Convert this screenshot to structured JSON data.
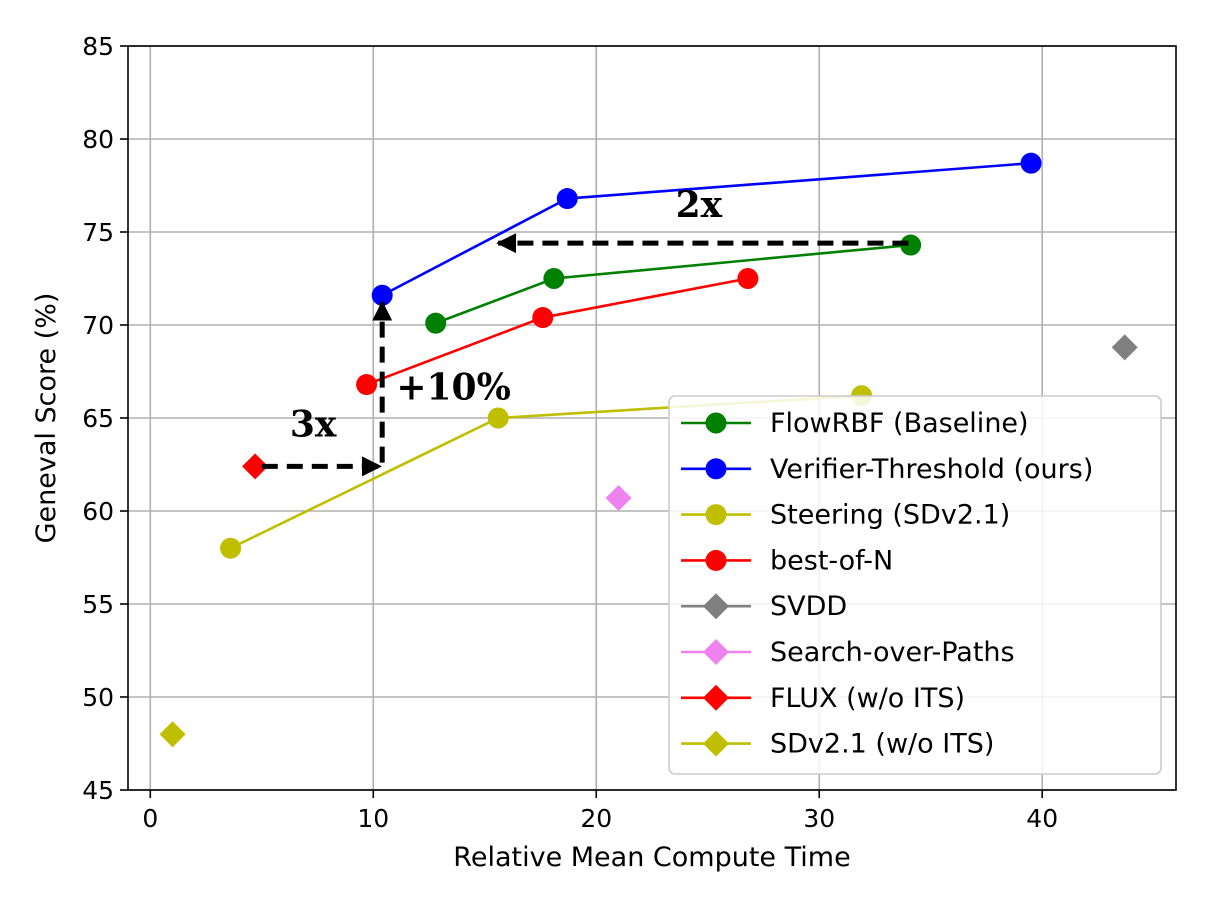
{
  "chart_data": {
    "type": "line",
    "title": "",
    "xlabel": "Relative Mean Compute Time",
    "ylabel": "Geneval Score (%)",
    "xlim": [
      -1,
      46
    ],
    "ylim": [
      45,
      85
    ],
    "xticks": [
      0,
      10,
      20,
      30,
      40
    ],
    "yticks": [
      45,
      50,
      55,
      60,
      65,
      70,
      75,
      80,
      85
    ],
    "grid": true,
    "legend_position": "lower-right",
    "series": [
      {
        "name": "FlowRBF (Baseline)",
        "color": "#008000",
        "marker": "circle",
        "line": true,
        "points": [
          {
            "x": 12.8,
            "y": 70.1
          },
          {
            "x": 18.1,
            "y": 72.5
          },
          {
            "x": 34.1,
            "y": 74.3
          }
        ]
      },
      {
        "name": "Verifier-Threshold (ours)",
        "color": "#0000ff",
        "marker": "circle",
        "line": true,
        "points": [
          {
            "x": 10.4,
            "y": 71.6
          },
          {
            "x": 18.7,
            "y": 76.8
          },
          {
            "x": 39.5,
            "y": 78.7
          }
        ]
      },
      {
        "name": "Steering (SDv2.1)",
        "color": "#bfbf00",
        "marker": "circle",
        "line": true,
        "points": [
          {
            "x": 3.6,
            "y": 58.0
          },
          {
            "x": 15.6,
            "y": 65.0
          },
          {
            "x": 31.9,
            "y": 66.2
          }
        ]
      },
      {
        "name": "best-of-N",
        "color": "#ff0000",
        "marker": "circle",
        "line": true,
        "points": [
          {
            "x": 9.7,
            "y": 66.8
          },
          {
            "x": 17.6,
            "y": 70.4
          },
          {
            "x": 26.8,
            "y": 72.5
          }
        ]
      },
      {
        "name": "SVDD",
        "color": "#808080",
        "marker": "diamond",
        "line": false,
        "points": [
          {
            "x": 43.7,
            "y": 68.8
          }
        ]
      },
      {
        "name": "Search-over-Paths",
        "color": "#ee82ee",
        "marker": "diamond",
        "line": false,
        "points": [
          {
            "x": 21.0,
            "y": 60.7
          }
        ]
      },
      {
        "name": "FLUX (w/o ITS)",
        "color": "#ff0000",
        "marker": "diamond",
        "line": false,
        "points": [
          {
            "x": 4.7,
            "y": 62.4
          }
        ]
      },
      {
        "name": "SDv2.1 (w/o ITS)",
        "color": "#bfbf00",
        "marker": "diamond",
        "line": false,
        "points": [
          {
            "x": 1.0,
            "y": 48.0
          }
        ]
      }
    ],
    "annotations": [
      {
        "text": "2x",
        "arrow_from": {
          "x": 34.0,
          "y": 74.4
        },
        "arrow_to": {
          "x": 15.6,
          "y": 74.4
        },
        "label_at": {
          "x": 24.6,
          "y": 75.8
        }
      },
      {
        "text": "3x",
        "arrow_from": {
          "x": 5.0,
          "y": 62.4
        },
        "arrow_to": {
          "x": 10.3,
          "y": 62.4
        },
        "label_at": {
          "x": 7.3,
          "y": 64.0
        }
      },
      {
        "text": "+10%",
        "arrow_from": {
          "x": 10.4,
          "y": 62.6
        },
        "arrow_to": {
          "x": 10.4,
          "y": 71.2
        },
        "label_at": {
          "x": 13.6,
          "y": 66.0
        }
      }
    ]
  }
}
